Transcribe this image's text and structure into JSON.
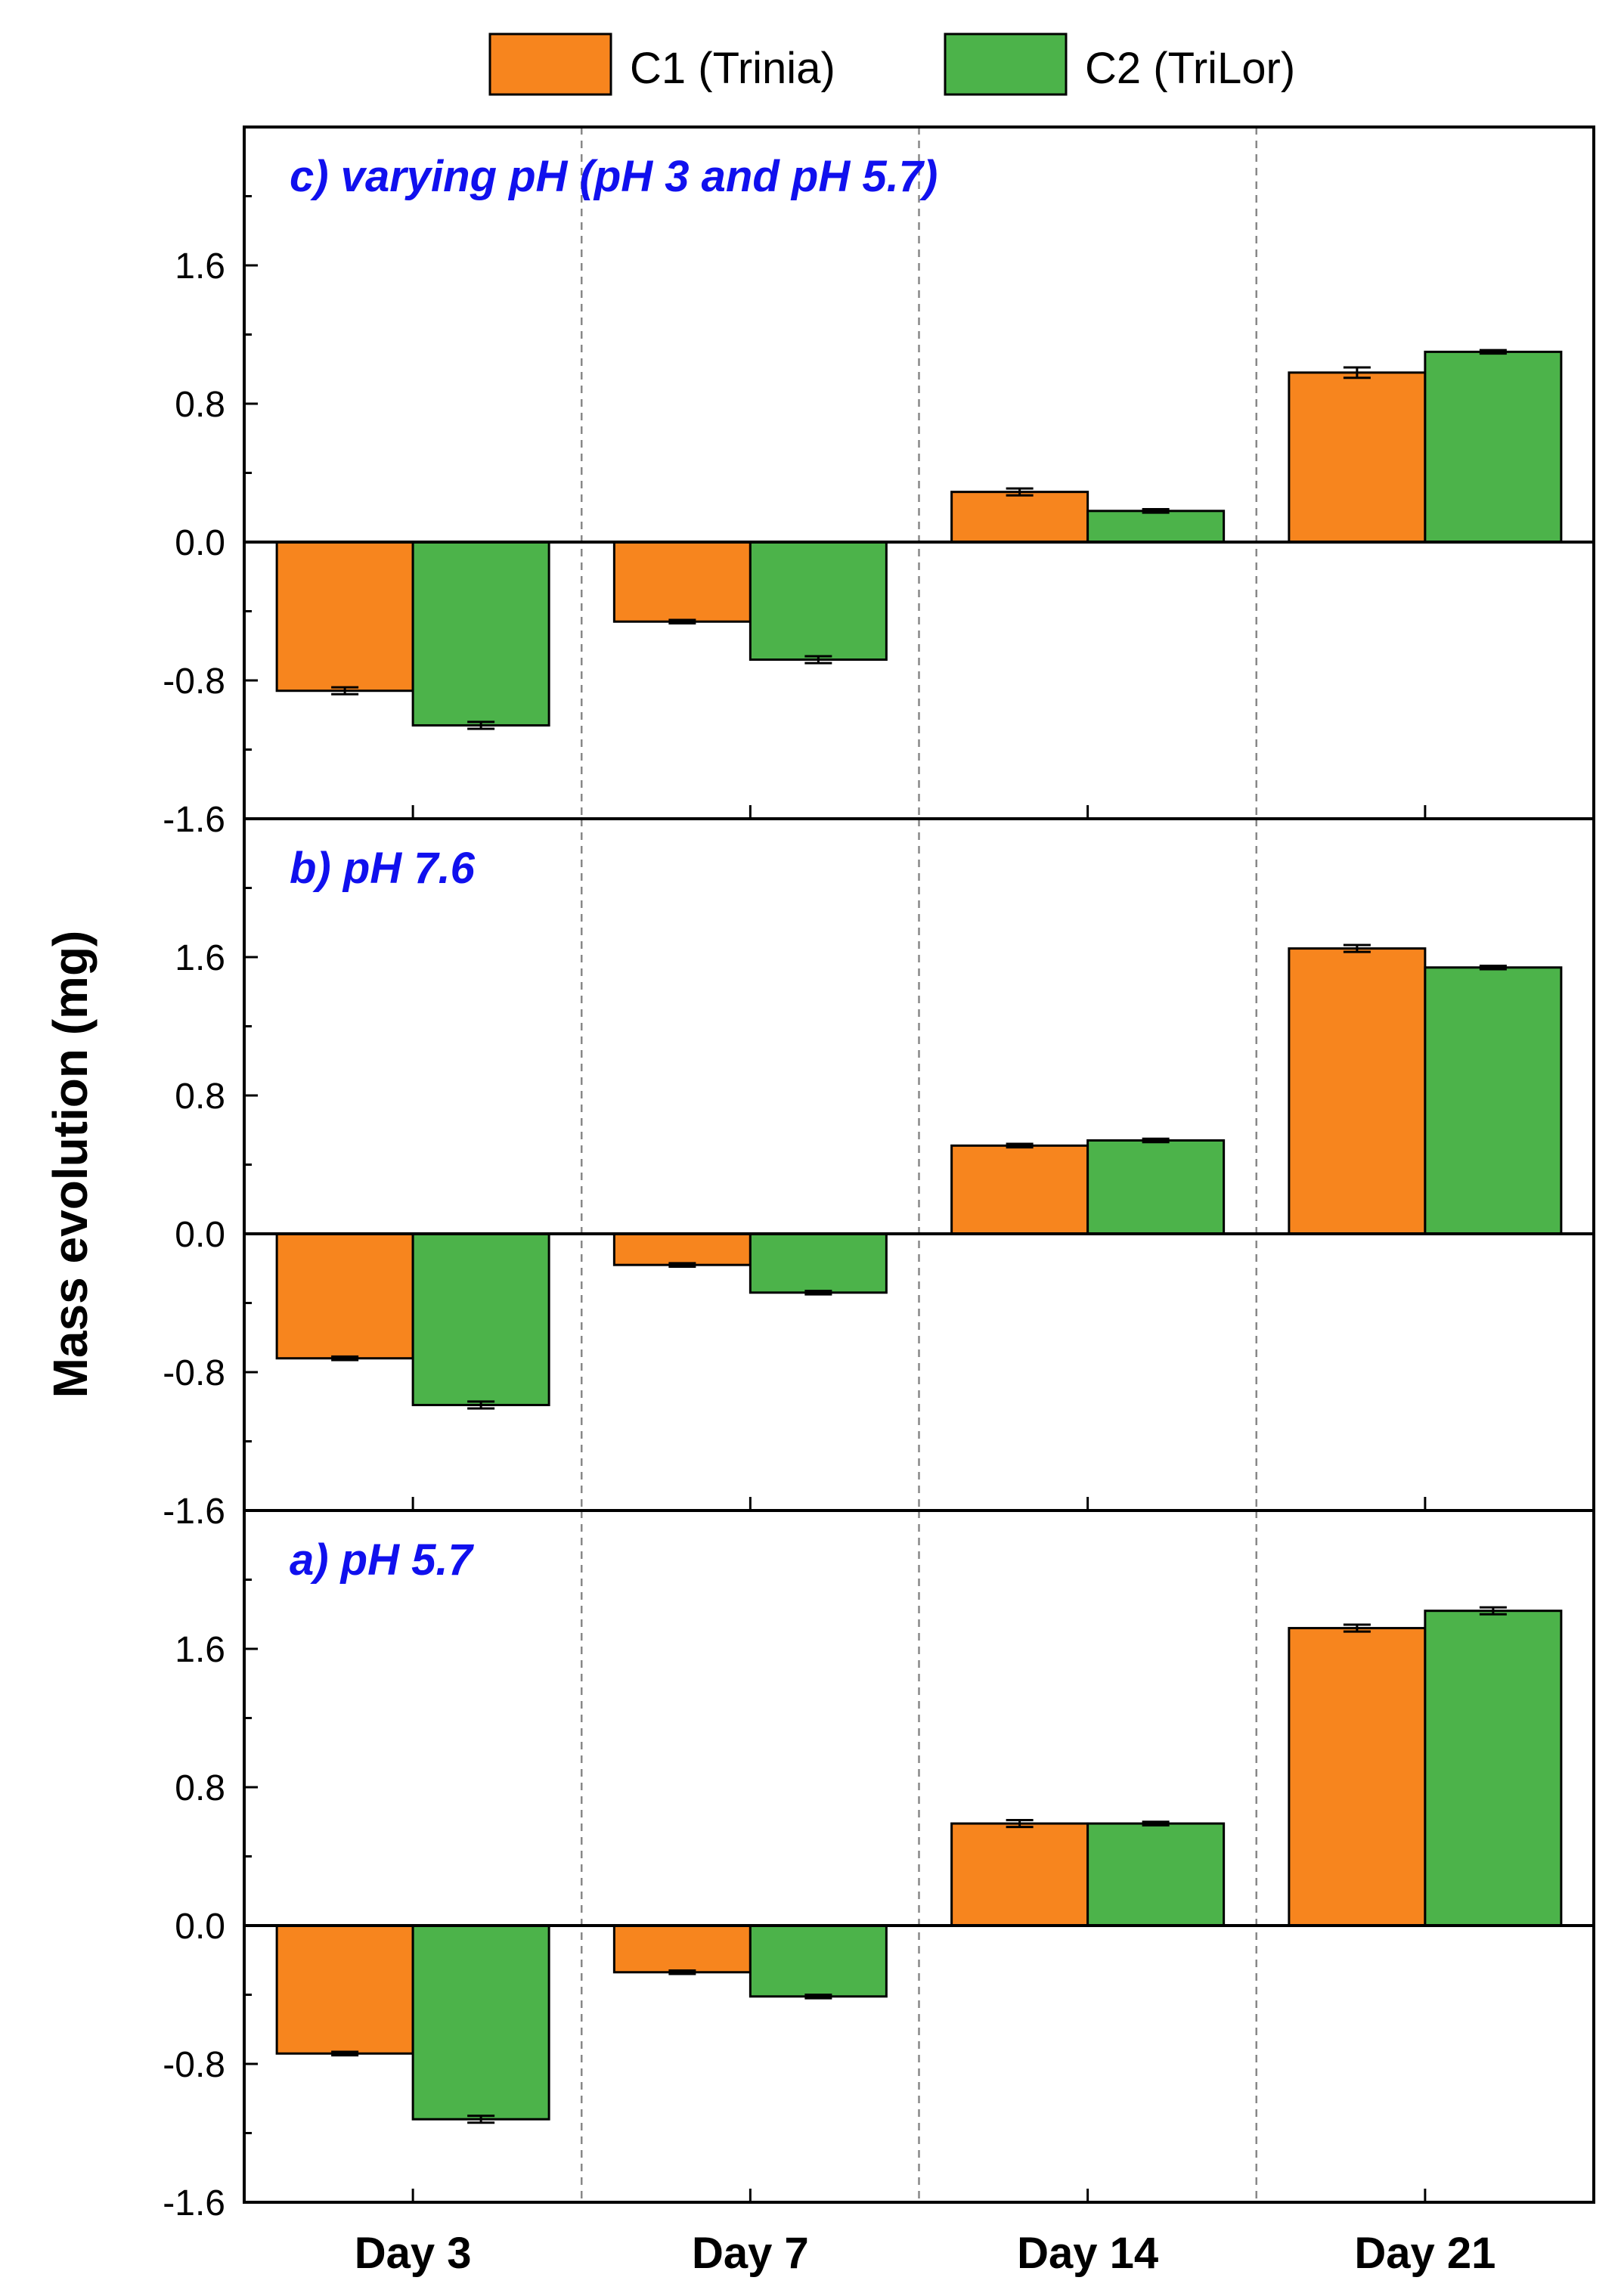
{
  "chart_data": {
    "type": "bar",
    "ylabel": "Mass evolution (mg)",
    "categories": [
      "Day 3",
      "Day 7",
      "Day 14",
      "Day 21"
    ],
    "legend": {
      "placement": "top-center",
      "items": [
        {
          "name": "C1 (Trinia)",
          "color": "#F7851E"
        },
        {
          "name": "C2 (TriLor)",
          "color": "#4CB34A"
        }
      ]
    },
    "ylim": [
      -1.6,
      2.4
    ],
    "yticks": [
      "-1.6",
      "-0.8",
      "0.0",
      "0.8",
      "1.6"
    ],
    "panels": [
      {
        "title": "c) varying pH (pH 3 and pH 5.7)",
        "title_color": "#1010EE",
        "series": [
          {
            "name": "C1 (Trinia)",
            "values": [
              -0.86,
              -0.46,
              0.29,
              0.98
            ],
            "errors": [
              0.02,
              0.01,
              0.02,
              0.03
            ]
          },
          {
            "name": "C2 (TriLor)",
            "values": [
              -1.06,
              -0.68,
              0.18,
              1.1
            ],
            "errors": [
              0.02,
              0.02,
              0.01,
              0.01
            ]
          }
        ]
      },
      {
        "title": "b) pH 7.6",
        "title_color": "#1010EE",
        "series": [
          {
            "name": "C1 (Trinia)",
            "values": [
              -0.72,
              -0.18,
              0.51,
              1.65
            ],
            "errors": [
              0.01,
              0.01,
              0.01,
              0.02
            ]
          },
          {
            "name": "C2 (TriLor)",
            "values": [
              -0.99,
              -0.34,
              0.54,
              1.54
            ],
            "errors": [
              0.02,
              0.01,
              0.01,
              0.01
            ]
          }
        ]
      },
      {
        "title": "a) pH 5.7",
        "title_color": "#1010EE",
        "series": [
          {
            "name": "C1 (Trinia)",
            "values": [
              -0.74,
              -0.27,
              0.59,
              1.72
            ],
            "errors": [
              0.01,
              0.01,
              0.02,
              0.02
            ]
          },
          {
            "name": "C2 (TriLor)",
            "values": [
              -1.12,
              -0.41,
              0.59,
              1.82
            ],
            "errors": [
              0.02,
              0.01,
              0.01,
              0.02
            ]
          }
        ]
      }
    ]
  }
}
